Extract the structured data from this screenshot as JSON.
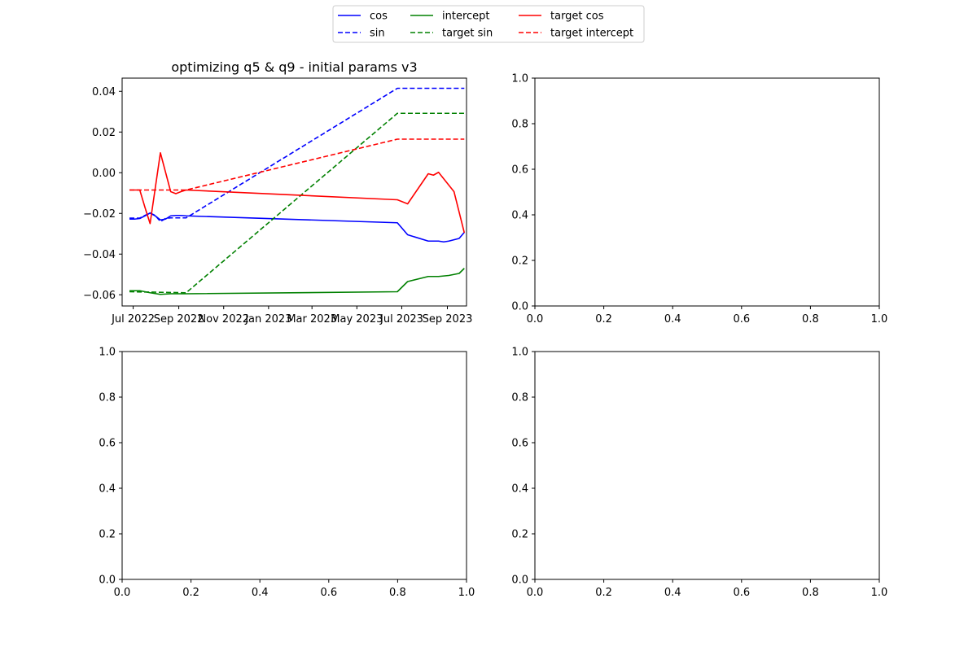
{
  "legend": {
    "placement": "upper center (figure)",
    "entries": [
      {
        "label": "cos",
        "color": "#0000ff",
        "dash": "solid"
      },
      {
        "label": "sin",
        "color": "#0000ff",
        "dash": "dashed"
      },
      {
        "label": "intercept",
        "color": "#008000",
        "dash": "solid"
      },
      {
        "label": "target sin",
        "color": "#008000",
        "dash": "dashed"
      },
      {
        "label": "target cos",
        "color": "#ff0000",
        "dash": "solid"
      },
      {
        "label": "target intercept",
        "color": "#ff0000",
        "dash": "dashed"
      }
    ]
  },
  "chart_data": [
    {
      "type": "line",
      "title": "optimizing q5 & q9 - initial params v3",
      "xlabel": "",
      "ylabel": "",
      "x_type": "date",
      "xlim": [
        "2022-06-16",
        "2023-09-27"
      ],
      "ylim": [
        -0.0655,
        0.0465
      ],
      "grid": false,
      "x_ticks": [
        {
          "value": "2022-07-01",
          "label": "Jul 2022"
        },
        {
          "value": "2022-09-01",
          "label": "Sep 2022"
        },
        {
          "value": "2022-11-01",
          "label": "Nov 2022"
        },
        {
          "value": "2023-01-01",
          "label": "Jan 2023"
        },
        {
          "value": "2023-03-01",
          "label": "Mar 2023"
        },
        {
          "value": "2023-05-01",
          "label": "May 2023"
        },
        {
          "value": "2023-07-01",
          "label": "Jul 2023"
        },
        {
          "value": "2023-09-01",
          "label": "Sep 2023"
        }
      ],
      "y_ticks": [
        {
          "value": 0.04,
          "label": "0.04"
        },
        {
          "value": 0.02,
          "label": "0.02"
        },
        {
          "value": 0.0,
          "label": "0.00"
        },
        {
          "value": -0.02,
          "label": "−0.02"
        },
        {
          "value": -0.04,
          "label": "−0.04"
        },
        {
          "value": -0.06,
          "label": "−0.06"
        }
      ],
      "series": [
        {
          "name": "cos",
          "color": "#0000ff",
          "dash": "solid",
          "points": [
            [
              "2022-06-26",
              -0.0228
            ],
            [
              "2022-07-03",
              -0.0228
            ],
            [
              "2022-07-10",
              -0.0225
            ],
            [
              "2022-07-17",
              -0.0212
            ],
            [
              "2022-07-24",
              -0.0198
            ],
            [
              "2022-07-31",
              -0.0212
            ],
            [
              "2022-08-07",
              -0.0232
            ],
            [
              "2022-08-14",
              -0.0228
            ],
            [
              "2022-08-21",
              -0.0212
            ],
            [
              "2022-08-28",
              -0.021
            ],
            [
              "2022-09-04",
              -0.021
            ],
            [
              "2022-09-11",
              -0.0212
            ],
            [
              "2023-06-25",
              -0.0246
            ],
            [
              "2023-07-09",
              -0.0305
            ],
            [
              "2023-08-06",
              -0.0336
            ],
            [
              "2023-08-20",
              -0.0336
            ],
            [
              "2023-08-27",
              -0.034
            ],
            [
              "2023-09-03",
              -0.0336
            ],
            [
              "2023-09-17",
              -0.0323
            ],
            [
              "2023-09-24",
              -0.0293
            ]
          ]
        },
        {
          "name": "sin",
          "color": "#0000ff",
          "dash": "dashed",
          "points": [
            [
              "2022-06-26",
              -0.0223
            ],
            [
              "2022-07-10",
              -0.0223
            ],
            [
              "2022-07-17",
              -0.021
            ],
            [
              "2022-07-24",
              -0.0198
            ],
            [
              "2022-07-31",
              -0.021
            ],
            [
              "2022-08-07",
              -0.024
            ],
            [
              "2022-08-14",
              -0.0225
            ],
            [
              "2022-08-21",
              -0.0222
            ],
            [
              "2022-09-11",
              -0.0222
            ],
            [
              "2023-06-25",
              0.0415
            ],
            [
              "2023-09-24",
              0.0415
            ]
          ]
        },
        {
          "name": "intercept",
          "color": "#008000",
          "dash": "solid",
          "points": [
            [
              "2022-06-26",
              -0.058
            ],
            [
              "2022-07-10",
              -0.058
            ],
            [
              "2022-07-24",
              -0.059
            ],
            [
              "2022-08-07",
              -0.0598
            ],
            [
              "2022-08-21",
              -0.0595
            ],
            [
              "2022-09-11",
              -0.0595
            ],
            [
              "2023-06-25",
              -0.0585
            ],
            [
              "2023-07-09",
              -0.0535
            ],
            [
              "2023-08-06",
              -0.051
            ],
            [
              "2023-08-20",
              -0.051
            ],
            [
              "2023-09-03",
              -0.0505
            ],
            [
              "2023-09-17",
              -0.0495
            ],
            [
              "2023-09-24",
              -0.047
            ]
          ]
        },
        {
          "name": "target sin",
          "color": "#008000",
          "dash": "dashed",
          "points": [
            [
              "2022-06-26",
              -0.0585
            ],
            [
              "2022-09-11",
              -0.059
            ],
            [
              "2023-06-25",
              0.0292
            ],
            [
              "2023-09-24",
              0.0292
            ]
          ]
        },
        {
          "name": "target cos",
          "color": "#ff0000",
          "dash": "solid",
          "points": [
            [
              "2022-06-26",
              -0.0085
            ],
            [
              "2022-07-10",
              -0.0085
            ],
            [
              "2022-07-17",
              -0.017
            ],
            [
              "2022-07-24",
              -0.025
            ],
            [
              "2022-08-07",
              0.0098
            ],
            [
              "2022-08-21",
              -0.0093
            ],
            [
              "2022-08-28",
              -0.0103
            ],
            [
              "2022-09-04",
              -0.0093
            ],
            [
              "2022-09-11",
              -0.0085
            ],
            [
              "2023-06-25",
              -0.0133
            ],
            [
              "2023-07-09",
              -0.0153
            ],
            [
              "2023-08-06",
              -0.0005
            ],
            [
              "2023-08-13",
              -0.0012
            ],
            [
              "2023-08-20",
              0.0002
            ],
            [
              "2023-09-10",
              -0.0093
            ],
            [
              "2023-09-24",
              -0.0295
            ]
          ]
        },
        {
          "name": "target intercept",
          "color": "#ff0000",
          "dash": "dashed",
          "points": [
            [
              "2022-06-26",
              -0.0085
            ],
            [
              "2022-09-11",
              -0.0085
            ],
            [
              "2023-06-25",
              0.0165
            ],
            [
              "2023-09-24",
              0.0165
            ]
          ]
        }
      ]
    },
    {
      "type": "line",
      "title": "",
      "xlabel": "",
      "ylabel": "",
      "xlim": [
        0,
        1
      ],
      "ylim": [
        0,
        1
      ],
      "grid": false,
      "x_ticks": [
        {
          "value": 0,
          "label": "0.0"
        },
        {
          "value": 0.2,
          "label": "0.2"
        },
        {
          "value": 0.4,
          "label": "0.4"
        },
        {
          "value": 0.6,
          "label": "0.6"
        },
        {
          "value": 0.8,
          "label": "0.8"
        },
        {
          "value": 1,
          "label": "1.0"
        }
      ],
      "y_ticks": [
        {
          "value": 0,
          "label": "0.0"
        },
        {
          "value": 0.2,
          "label": "0.2"
        },
        {
          "value": 0.4,
          "label": "0.4"
        },
        {
          "value": 0.6,
          "label": "0.6"
        },
        {
          "value": 0.8,
          "label": "0.8"
        },
        {
          "value": 1,
          "label": "1.0"
        }
      ],
      "series": []
    },
    {
      "type": "line",
      "title": "",
      "xlabel": "",
      "ylabel": "",
      "xlim": [
        0,
        1
      ],
      "ylim": [
        0,
        1
      ],
      "grid": false,
      "x_ticks": [
        {
          "value": 0,
          "label": "0.0"
        },
        {
          "value": 0.2,
          "label": "0.2"
        },
        {
          "value": 0.4,
          "label": "0.4"
        },
        {
          "value": 0.6,
          "label": "0.6"
        },
        {
          "value": 0.8,
          "label": "0.8"
        },
        {
          "value": 1,
          "label": "1.0"
        }
      ],
      "y_ticks": [
        {
          "value": 0,
          "label": "0.0"
        },
        {
          "value": 0.2,
          "label": "0.2"
        },
        {
          "value": 0.4,
          "label": "0.4"
        },
        {
          "value": 0.6,
          "label": "0.6"
        },
        {
          "value": 0.8,
          "label": "0.8"
        },
        {
          "value": 1,
          "label": "1.0"
        }
      ],
      "series": []
    },
    {
      "type": "line",
      "title": "",
      "xlabel": "",
      "ylabel": "",
      "xlim": [
        0,
        1
      ],
      "ylim": [
        0,
        1
      ],
      "grid": false,
      "x_ticks": [
        {
          "value": 0,
          "label": "0.0"
        },
        {
          "value": 0.2,
          "label": "0.2"
        },
        {
          "value": 0.4,
          "label": "0.4"
        },
        {
          "value": 0.6,
          "label": "0.6"
        },
        {
          "value": 0.8,
          "label": "0.8"
        },
        {
          "value": 1,
          "label": "1.0"
        }
      ],
      "y_ticks": [
        {
          "value": 0,
          "label": "0.0"
        },
        {
          "value": 0.2,
          "label": "0.2"
        },
        {
          "value": 0.4,
          "label": "0.4"
        },
        {
          "value": 0.6,
          "label": "0.6"
        },
        {
          "value": 0.8,
          "label": "0.8"
        },
        {
          "value": 1,
          "label": "1.0"
        }
      ],
      "series": []
    }
  ]
}
